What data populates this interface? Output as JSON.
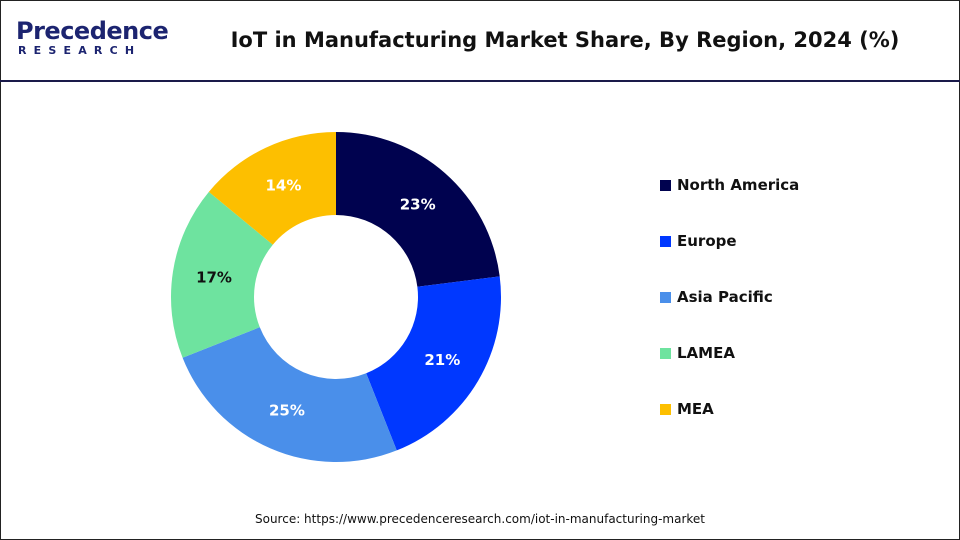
{
  "logo": {
    "top": "Precedence",
    "bottom": "RESEARCH"
  },
  "chart_data": {
    "type": "pie",
    "donut": true,
    "title": "IoT in Manufacturing Market Share, By Region, 2024 (%)",
    "categories": [
      "North America",
      "Europe",
      "Asia Pacific",
      "LAMEA",
      "MEA"
    ],
    "values": [
      23,
      21,
      25,
      17,
      14
    ],
    "labels": [
      "23%",
      "21%",
      "25%",
      "17%",
      "14%"
    ],
    "colors": [
      "#00024f",
      "#0038ff",
      "#4a8fea",
      "#6ee39f",
      "#fdbf00"
    ],
    "label_colors": [
      "#ffffff",
      "#ffffff",
      "#ffffff",
      "#111111",
      "#ffffff"
    ],
    "legend_position": "right"
  },
  "source": "Source: https://www.precedenceresearch.com/iot-in-manufacturing-market"
}
